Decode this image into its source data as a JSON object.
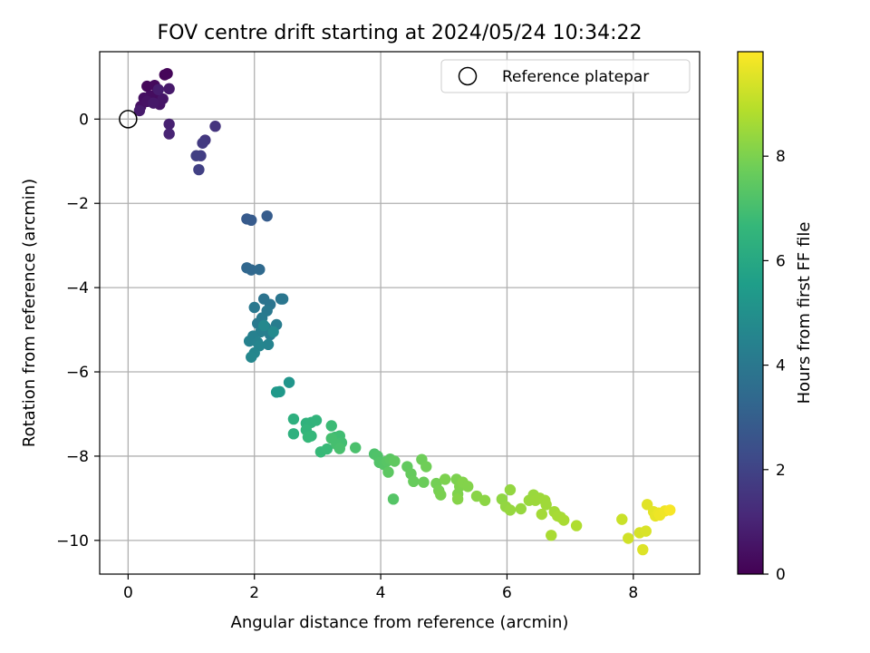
{
  "chart_data": {
    "type": "scatter",
    "title": "FOV centre drift starting at 2024/05/24 10:34:22",
    "xlabel": "Angular distance from reference (arcmin)",
    "ylabel": "Rotation from reference (arcmin)",
    "xlim": [
      -0.45,
      9.05
    ],
    "ylim": [
      -10.8,
      1.6
    ],
    "x_ticks": [
      0,
      2,
      4,
      6,
      8
    ],
    "y_ticks": [
      0,
      -2,
      -4,
      -6,
      -8,
      -10
    ],
    "grid": true,
    "legend": {
      "position": "top-right",
      "entries": [
        "Reference platepar"
      ]
    },
    "reference_point": {
      "x": 0,
      "y": 0,
      "label": "Reference platepar"
    },
    "colorbar": {
      "label": "Hours from first FF file",
      "range": [
        0,
        10
      ],
      "ticks": [
        0,
        2,
        4,
        6,
        8
      ],
      "colormap": "viridis"
    },
    "points": [
      {
        "x": 0.58,
        "y": 1.05,
        "h": 0.1
      },
      {
        "x": 0.62,
        "y": 1.08,
        "h": 0.15
      },
      {
        "x": 0.3,
        "y": 0.78,
        "h": 0.2
      },
      {
        "x": 0.42,
        "y": 0.8,
        "h": 0.25
      },
      {
        "x": 0.45,
        "y": 0.6,
        "h": 0.3
      },
      {
        "x": 0.35,
        "y": 0.55,
        "h": 0.35
      },
      {
        "x": 0.25,
        "y": 0.5,
        "h": 0.4
      },
      {
        "x": 0.2,
        "y": 0.3,
        "h": 0.45
      },
      {
        "x": 0.3,
        "y": 0.42,
        "h": 0.5
      },
      {
        "x": 0.5,
        "y": 0.35,
        "h": 0.55
      },
      {
        "x": 0.55,
        "y": 0.48,
        "h": 0.6
      },
      {
        "x": 0.4,
        "y": 0.38,
        "h": 0.65
      },
      {
        "x": 0.65,
        "y": 0.72,
        "h": 0.7
      },
      {
        "x": 0.18,
        "y": 0.2,
        "h": 0.75
      },
      {
        "x": 0.48,
        "y": 0.7,
        "h": 0.8
      },
      {
        "x": 0.65,
        "y": -0.12,
        "h": 0.9
      },
      {
        "x": 0.65,
        "y": -0.35,
        "h": 1.0
      },
      {
        "x": 1.38,
        "y": -0.17,
        "h": 1.5
      },
      {
        "x": 1.22,
        "y": -0.5,
        "h": 1.6
      },
      {
        "x": 1.18,
        "y": -0.57,
        "h": 1.7
      },
      {
        "x": 1.15,
        "y": -0.87,
        "h": 1.8
      },
      {
        "x": 1.08,
        "y": -0.87,
        "h": 1.85
      },
      {
        "x": 1.12,
        "y": -1.2,
        "h": 1.9
      },
      {
        "x": 1.88,
        "y": -2.37,
        "h": 2.8
      },
      {
        "x": 1.95,
        "y": -2.4,
        "h": 2.85
      },
      {
        "x": 2.2,
        "y": -2.3,
        "h": 2.9
      },
      {
        "x": 1.88,
        "y": -3.53,
        "h": 3.3
      },
      {
        "x": 1.95,
        "y": -3.58,
        "h": 3.35
      },
      {
        "x": 2.08,
        "y": -3.57,
        "h": 3.4
      },
      {
        "x": 2.15,
        "y": -4.27,
        "h": 3.8
      },
      {
        "x": 2.25,
        "y": -4.4,
        "h": 3.85
      },
      {
        "x": 2.42,
        "y": -4.27,
        "h": 3.9
      },
      {
        "x": 2.45,
        "y": -4.27,
        "h": 3.95
      },
      {
        "x": 2.2,
        "y": -4.55,
        "h": 4.0
      },
      {
        "x": 2.0,
        "y": -4.47,
        "h": 4.0
      },
      {
        "x": 2.05,
        "y": -4.85,
        "h": 4.05
      },
      {
        "x": 2.12,
        "y": -4.72,
        "h": 4.1
      },
      {
        "x": 2.18,
        "y": -4.95,
        "h": 4.15
      },
      {
        "x": 2.35,
        "y": -4.88,
        "h": 4.2
      },
      {
        "x": 2.25,
        "y": -5.12,
        "h": 4.25
      },
      {
        "x": 2.1,
        "y": -5.05,
        "h": 4.3
      },
      {
        "x": 1.98,
        "y": -5.15,
        "h": 4.35
      },
      {
        "x": 1.92,
        "y": -5.27,
        "h": 4.4
      },
      {
        "x": 2.05,
        "y": -5.3,
        "h": 4.45
      },
      {
        "x": 2.22,
        "y": -5.35,
        "h": 4.5
      },
      {
        "x": 2.08,
        "y": -5.38,
        "h": 4.55
      },
      {
        "x": 2.0,
        "y": -5.55,
        "h": 4.6
      },
      {
        "x": 1.95,
        "y": -5.65,
        "h": 4.65
      },
      {
        "x": 2.15,
        "y": -4.9,
        "h": 4.7
      },
      {
        "x": 2.3,
        "y": -5.05,
        "h": 4.75
      },
      {
        "x": 2.55,
        "y": -6.25,
        "h": 5.2
      },
      {
        "x": 2.4,
        "y": -6.47,
        "h": 5.3
      },
      {
        "x": 2.35,
        "y": -6.48,
        "h": 5.35
      },
      {
        "x": 2.62,
        "y": -7.12,
        "h": 6.3
      },
      {
        "x": 2.62,
        "y": -7.47,
        "h": 6.35
      },
      {
        "x": 2.82,
        "y": -7.22,
        "h": 6.4
      },
      {
        "x": 2.9,
        "y": -7.2,
        "h": 6.45
      },
      {
        "x": 2.98,
        "y": -7.15,
        "h": 6.5
      },
      {
        "x": 2.82,
        "y": -7.38,
        "h": 6.55
      },
      {
        "x": 2.9,
        "y": -7.52,
        "h": 6.6
      },
      {
        "x": 2.85,
        "y": -7.55,
        "h": 6.65
      },
      {
        "x": 3.05,
        "y": -7.9,
        "h": 6.7
      },
      {
        "x": 3.15,
        "y": -7.83,
        "h": 6.75
      },
      {
        "x": 3.22,
        "y": -7.28,
        "h": 6.8
      },
      {
        "x": 3.28,
        "y": -7.55,
        "h": 6.85
      },
      {
        "x": 3.35,
        "y": -7.52,
        "h": 6.9
      },
      {
        "x": 3.38,
        "y": -7.68,
        "h": 6.95
      },
      {
        "x": 3.3,
        "y": -7.72,
        "h": 7.0
      },
      {
        "x": 3.22,
        "y": -7.58,
        "h": 7.0
      },
      {
        "x": 3.35,
        "y": -7.82,
        "h": 7.05
      },
      {
        "x": 3.6,
        "y": -7.8,
        "h": 7.1
      },
      {
        "x": 3.9,
        "y": -7.95,
        "h": 7.15
      },
      {
        "x": 3.95,
        "y": -8.0,
        "h": 7.2
      },
      {
        "x": 3.98,
        "y": -8.15,
        "h": 7.25
      },
      {
        "x": 4.05,
        "y": -8.2,
        "h": 7.3
      },
      {
        "x": 4.1,
        "y": -8.12,
        "h": 7.35
      },
      {
        "x": 4.15,
        "y": -8.07,
        "h": 7.4
      },
      {
        "x": 4.12,
        "y": -8.38,
        "h": 7.45
      },
      {
        "x": 4.22,
        "y": -8.12,
        "h": 7.5
      },
      {
        "x": 4.42,
        "y": -8.25,
        "h": 7.55
      },
      {
        "x": 4.48,
        "y": -8.42,
        "h": 7.6
      },
      {
        "x": 4.52,
        "y": -8.6,
        "h": 7.65
      },
      {
        "x": 4.68,
        "y": -8.62,
        "h": 7.7
      },
      {
        "x": 4.65,
        "y": -8.08,
        "h": 7.75
      },
      {
        "x": 4.72,
        "y": -8.25,
        "h": 7.8
      },
      {
        "x": 4.2,
        "y": -9.02,
        "h": 7.3
      },
      {
        "x": 4.88,
        "y": -8.65,
        "h": 7.85
      },
      {
        "x": 4.92,
        "y": -8.82,
        "h": 7.9
      },
      {
        "x": 4.95,
        "y": -8.92,
        "h": 7.95
      },
      {
        "x": 5.02,
        "y": -8.55,
        "h": 8.0
      },
      {
        "x": 5.2,
        "y": -8.55,
        "h": 8.0
      },
      {
        "x": 5.22,
        "y": -8.9,
        "h": 8.05
      },
      {
        "x": 5.25,
        "y": -8.72,
        "h": 8.05
      },
      {
        "x": 5.3,
        "y": -8.62,
        "h": 8.1
      },
      {
        "x": 5.38,
        "y": -8.72,
        "h": 8.1
      },
      {
        "x": 5.22,
        "y": -9.02,
        "h": 8.15
      },
      {
        "x": 5.52,
        "y": -8.95,
        "h": 8.2
      },
      {
        "x": 5.65,
        "y": -9.05,
        "h": 8.25
      },
      {
        "x": 5.92,
        "y": -9.02,
        "h": 8.3
      },
      {
        "x": 5.98,
        "y": -9.2,
        "h": 8.35
      },
      {
        "x": 6.05,
        "y": -8.8,
        "h": 8.35
      },
      {
        "x": 6.05,
        "y": -9.28,
        "h": 8.4
      },
      {
        "x": 6.22,
        "y": -9.25,
        "h": 8.4
      },
      {
        "x": 6.35,
        "y": -9.05,
        "h": 8.45
      },
      {
        "x": 6.42,
        "y": -8.92,
        "h": 8.45
      },
      {
        "x": 6.45,
        "y": -9.05,
        "h": 8.5
      },
      {
        "x": 6.52,
        "y": -9.0,
        "h": 8.5
      },
      {
        "x": 6.6,
        "y": -9.05,
        "h": 8.55
      },
      {
        "x": 6.62,
        "y": -9.15,
        "h": 8.55
      },
      {
        "x": 6.55,
        "y": -9.38,
        "h": 8.6
      },
      {
        "x": 6.75,
        "y": -9.32,
        "h": 8.6
      },
      {
        "x": 6.8,
        "y": -9.42,
        "h": 8.65
      },
      {
        "x": 6.85,
        "y": -9.45,
        "h": 8.65
      },
      {
        "x": 6.9,
        "y": -9.52,
        "h": 8.7
      },
      {
        "x": 6.7,
        "y": -9.88,
        "h": 8.7
      },
      {
        "x": 7.1,
        "y": -9.65,
        "h": 8.8
      },
      {
        "x": 7.82,
        "y": -9.5,
        "h": 9.2
      },
      {
        "x": 7.92,
        "y": -9.95,
        "h": 9.3
      },
      {
        "x": 8.1,
        "y": -9.82,
        "h": 9.4
      },
      {
        "x": 8.2,
        "y": -9.78,
        "h": 9.45
      },
      {
        "x": 8.15,
        "y": -10.22,
        "h": 9.5
      },
      {
        "x": 8.22,
        "y": -9.15,
        "h": 9.55
      },
      {
        "x": 8.32,
        "y": -9.32,
        "h": 9.6
      },
      {
        "x": 8.35,
        "y": -9.42,
        "h": 9.65
      },
      {
        "x": 8.4,
        "y": -9.35,
        "h": 9.7
      },
      {
        "x": 8.42,
        "y": -9.4,
        "h": 9.75
      },
      {
        "x": 8.5,
        "y": -9.3,
        "h": 9.8
      },
      {
        "x": 8.58,
        "y": -9.28,
        "h": 9.9
      }
    ]
  }
}
